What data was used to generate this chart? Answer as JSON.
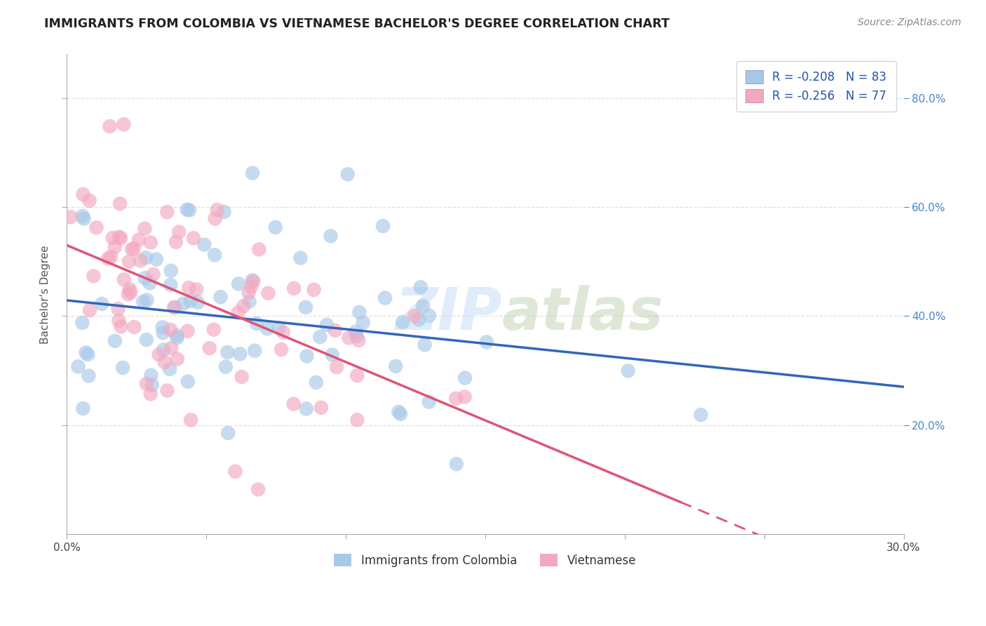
{
  "title": "IMMIGRANTS FROM COLOMBIA VS VIETNAMESE BACHELOR'S DEGREE CORRELATION CHART",
  "source": "Source: ZipAtlas.com",
  "ylabel": "Bachelor's Degree",
  "legend_blue_label": "Immigrants from Colombia",
  "legend_pink_label": "Vietnamese",
  "legend_blue_r": "R = -0.208",
  "legend_blue_n": "N = 83",
  "legend_pink_r": "R = -0.256",
  "legend_pink_n": "N = 77",
  "x_min": 0.0,
  "x_max": 0.3,
  "y_min": 0.0,
  "y_max": 0.88,
  "blue_color": "#a8c8e8",
  "pink_color": "#f4a8c0",
  "blue_line_color": "#3366bb",
  "pink_line_color": "#dd5577",
  "right_tick_color": "#4488cc",
  "background_color": "#ffffff",
  "grid_color": "#cccccc",
  "title_color": "#222222",
  "source_color": "#888888",
  "legend_r_color": "#2255aa",
  "legend_n_color": "#222222"
}
